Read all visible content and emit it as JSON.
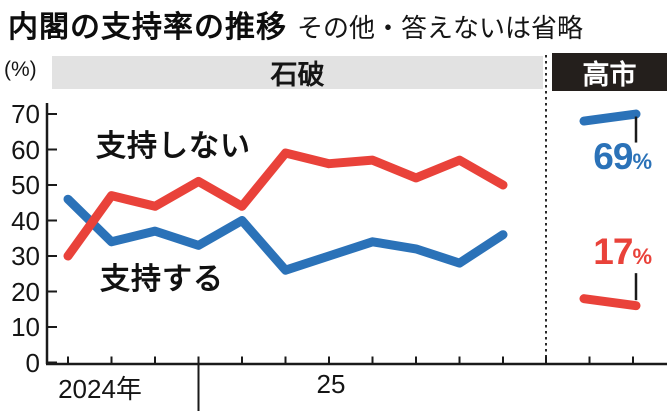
{
  "header": {
    "title": "内閣の支持率の推移",
    "subtitle": "その他・答えないは省略"
  },
  "axis": {
    "unit": "(%)",
    "y_ticks": [
      70,
      60,
      50,
      40,
      30,
      20,
      10,
      0
    ],
    "x_labels": {
      "y2024": "2024年",
      "y2025": "25"
    }
  },
  "eras": {
    "ishiba": "石破",
    "takaichi": "高市"
  },
  "series_labels": {
    "approve": "支持する",
    "disapprove": "支持しない"
  },
  "takaichi_result": {
    "approve_value": "69",
    "disapprove_value": "17",
    "percent_sign": "%"
  },
  "colors": {
    "approve_blue": "#2b72b8",
    "disapprove_red": "#e9423a",
    "band_gray": "#e2e2e2",
    "box_black": "#241f1c",
    "axis_black": "#1a1a1a"
  },
  "chart_data": {
    "type": "line",
    "title": "内閣の支持率の推移",
    "note": "その他・答えないは省略",
    "ylabel": "(%)",
    "ylim": [
      0,
      70
    ],
    "y_ticks": [
      70,
      60,
      50,
      40,
      30,
      20,
      10,
      0
    ],
    "x_year_labels": [
      "2024年",
      "25"
    ],
    "grid": false,
    "legend_position": "inline-labels",
    "eras": [
      {
        "label": "石破",
        "points": 11
      },
      {
        "label": "高市",
        "points": 1
      }
    ],
    "series": [
      {
        "name": "支持する",
        "color": "#2b72b8",
        "ishiba_values": [
          46,
          34,
          37,
          33,
          40,
          26,
          30,
          34,
          32,
          28,
          36
        ],
        "takaichi_value": 69
      },
      {
        "name": "支持しない",
        "color": "#e9423a",
        "ishiba_values": [
          30,
          47,
          44,
          51,
          44,
          59,
          56,
          57,
          52,
          57,
          50
        ],
        "takaichi_value": 17
      }
    ]
  }
}
